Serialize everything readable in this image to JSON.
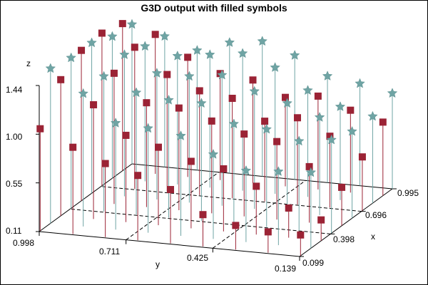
{
  "chart_data": {
    "type": "scatter3d",
    "title": "G3D output with filled symbols",
    "xlabel": "x",
    "ylabel": "y",
    "zlabel": "z",
    "x_ticks": [
      "0.099",
      "0.398",
      "0.696",
      "0.995"
    ],
    "y_ticks": [
      "0.998",
      "0.711",
      "0.425",
      "0.139"
    ],
    "z_ticks": [
      "0.11",
      "0.55",
      "1.00",
      "1.44"
    ],
    "xlim": [
      0.099,
      0.995
    ],
    "ylim": [
      0.139,
      0.998
    ],
    "zlim": [
      0.11,
      1.44
    ],
    "series": [
      {
        "marker": "square",
        "color": "#9b2335",
        "points": [
          [
            0.108,
            0.998,
            1.04
          ],
          [
            0.108,
            0.89,
            0.9
          ],
          [
            0.108,
            0.783,
            0.78
          ],
          [
            0.108,
            0.676,
            0.7
          ],
          [
            0.108,
            0.568,
            0.6
          ],
          [
            0.108,
            0.461,
            0.4
          ],
          [
            0.108,
            0.353,
            0.33
          ],
          [
            0.108,
            0.246,
            0.3
          ],
          [
            0.108,
            0.139,
            0.3
          ],
          [
            0.307,
            0.998,
            1.35
          ],
          [
            0.307,
            0.89,
            1.15
          ],
          [
            0.307,
            0.783,
            0.9
          ],
          [
            0.307,
            0.676,
            0.82
          ],
          [
            0.307,
            0.568,
            0.72
          ],
          [
            0.307,
            0.461,
            0.68
          ],
          [
            0.307,
            0.353,
            0.55
          ],
          [
            0.307,
            0.246,
            0.38
          ],
          [
            0.307,
            0.139,
            0.3
          ],
          [
            0.506,
            0.998,
            1.48
          ],
          [
            0.506,
            0.89,
            1.3
          ],
          [
            0.506,
            0.783,
            1.06
          ],
          [
            0.506,
            0.676,
            1.04
          ],
          [
            0.506,
            0.568,
            0.95
          ],
          [
            0.506,
            0.461,
            0.86
          ],
          [
            0.506,
            0.353,
            0.82
          ],
          [
            0.506,
            0.246,
            0.62
          ],
          [
            0.506,
            0.139,
            0.46
          ],
          [
            0.705,
            0.998,
            1.5
          ],
          [
            0.705,
            0.89,
            1.4
          ],
          [
            0.705,
            0.783,
            1.18
          ],
          [
            0.705,
            0.676,
            1.06
          ],
          [
            0.705,
            0.568,
            1.02
          ],
          [
            0.705,
            0.461,
            0.84
          ],
          [
            0.705,
            0.353,
            0.9
          ],
          [
            0.705,
            0.246,
            0.76
          ],
          [
            0.705,
            0.139,
            0.6
          ],
          [
            0.904,
            0.998,
            1.45
          ],
          [
            0.904,
            0.89,
            1.38
          ],
          [
            0.904,
            0.783,
            1.2
          ],
          [
            0.904,
            0.676,
            1.08
          ],
          [
            0.904,
            0.568,
            1.05
          ],
          [
            0.904,
            0.461,
            0.92
          ],
          [
            0.904,
            0.353,
            0.96
          ],
          [
            0.904,
            0.246,
            0.86
          ],
          [
            0.904,
            0.139,
            0.78
          ]
        ]
      },
      {
        "marker": "star",
        "color": "#6fa4a4",
        "points": [
          [
            0.208,
            0.998,
            1.52
          ],
          [
            0.208,
            0.89,
            1.32
          ],
          [
            0.208,
            0.783,
            1.08
          ],
          [
            0.208,
            0.676,
            1.06
          ],
          [
            0.208,
            0.568,
            1.02
          ],
          [
            0.208,
            0.461,
            0.88
          ],
          [
            0.208,
            0.353,
            0.76
          ],
          [
            0.208,
            0.246,
            0.78
          ],
          [
            0.208,
            0.139,
            0.8
          ],
          [
            0.407,
            0.998,
            1.48
          ],
          [
            0.407,
            0.89,
            1.34
          ],
          [
            0.407,
            0.783,
            1.22
          ],
          [
            0.407,
            0.676,
            1.18
          ],
          [
            0.407,
            0.568,
            1.18
          ],
          [
            0.407,
            0.461,
            1.02
          ],
          [
            0.407,
            0.353,
            1.0
          ],
          [
            0.407,
            0.246,
            0.92
          ],
          [
            0.407,
            0.139,
            0.96
          ],
          [
            0.606,
            0.998,
            1.48
          ],
          [
            0.606,
            0.89,
            1.4
          ],
          [
            0.606,
            0.783,
            1.26
          ],
          [
            0.606,
            0.676,
            1.26
          ],
          [
            0.606,
            0.568,
            1.3
          ],
          [
            0.606,
            0.461,
            1.18
          ],
          [
            0.606,
            0.353,
            1.1
          ],
          [
            0.606,
            0.246,
            1.0
          ],
          [
            0.606,
            0.139,
            0.9
          ],
          [
            0.805,
            0.998,
            1.4
          ],
          [
            0.805,
            0.89,
            1.34
          ],
          [
            0.805,
            0.783,
            1.28
          ],
          [
            0.805,
            0.676,
            1.32
          ],
          [
            0.805,
            0.568,
            1.36
          ],
          [
            0.805,
            0.461,
            1.26
          ],
          [
            0.805,
            0.353,
            1.08
          ],
          [
            0.805,
            0.246,
            0.96
          ],
          [
            0.805,
            0.139,
            0.9
          ],
          [
            0.995,
            0.998,
            1.38
          ],
          [
            0.995,
            0.89,
            1.3
          ],
          [
            0.995,
            0.783,
            1.2
          ],
          [
            0.995,
            0.676,
            1.3
          ],
          [
            0.995,
            0.568,
            1.34
          ],
          [
            0.995,
            0.461,
            1.24
          ],
          [
            0.995,
            0.353,
            1.08
          ],
          [
            0.995,
            0.246,
            1.04
          ],
          [
            0.995,
            0.139,
            0.98
          ]
        ]
      }
    ]
  }
}
